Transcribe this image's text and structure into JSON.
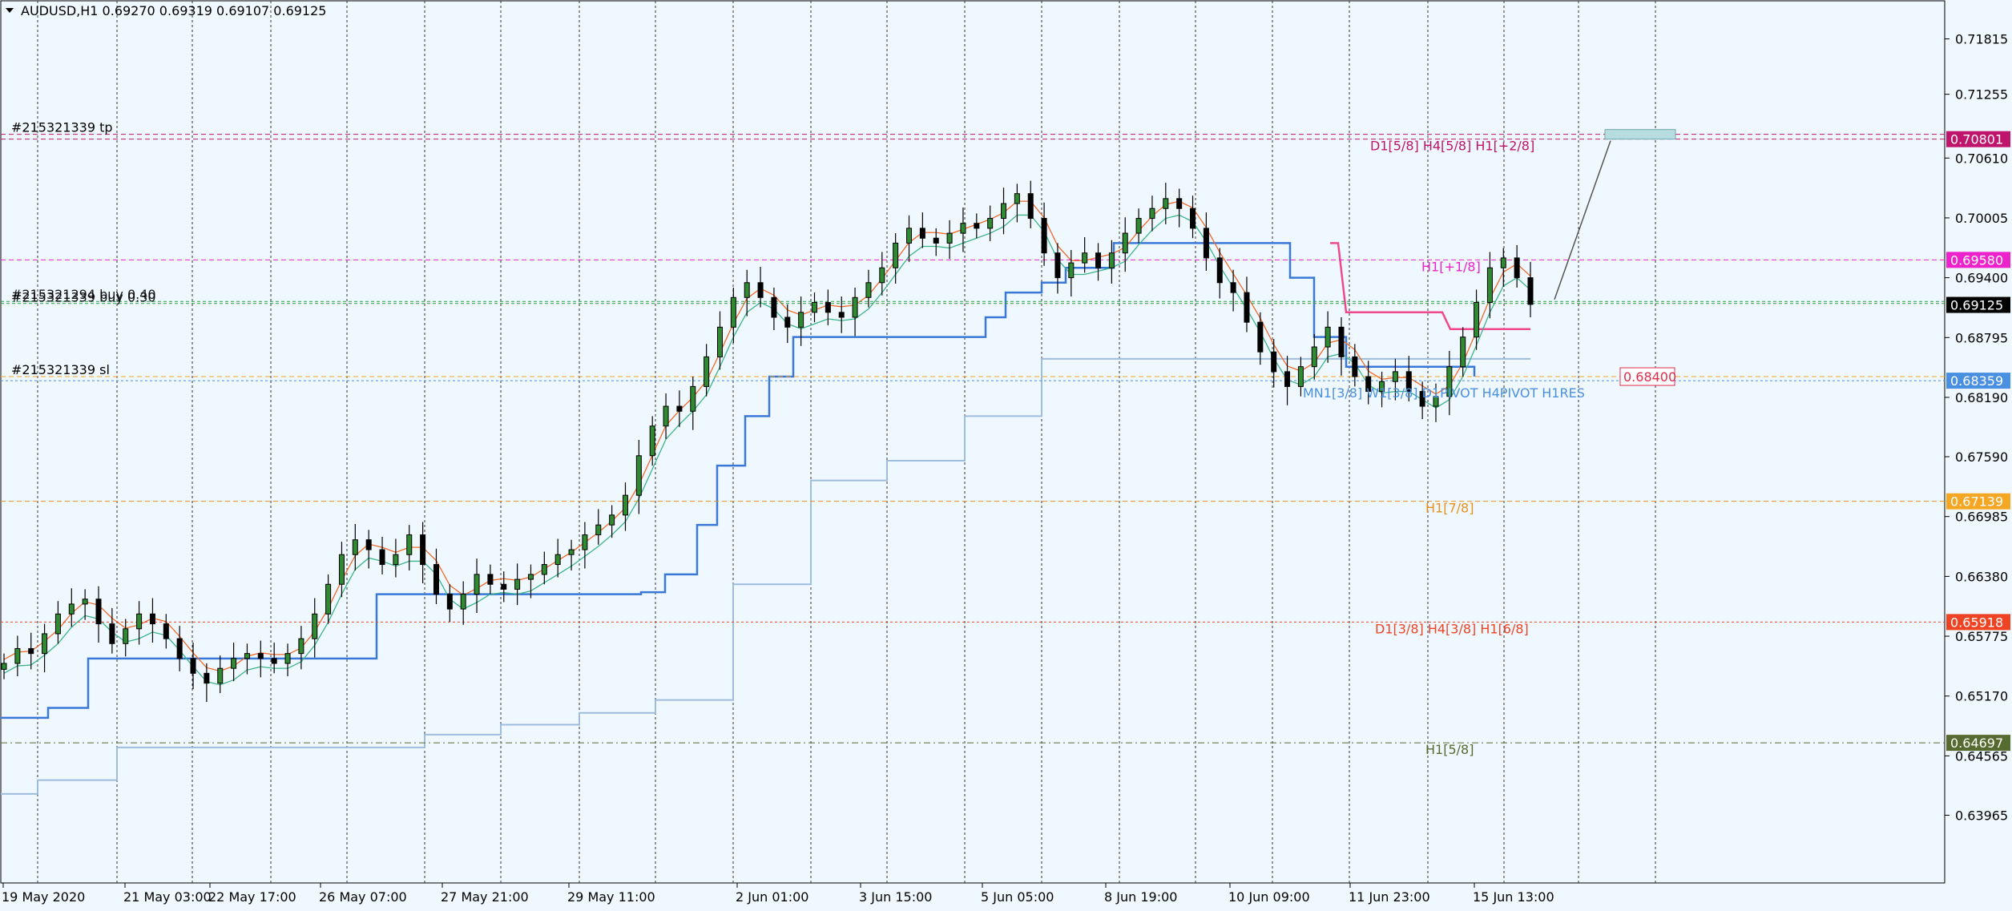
{
  "window": {
    "symbol_title": "AUDUSD,H1  0.69270 0.69319 0.69107 0.69125"
  },
  "chart_data": {
    "type": "candlestick",
    "symbol": "AUDUSD",
    "timeframe": "H1",
    "ohlc_last": {
      "open": 0.6927,
      "high": 0.69319,
      "low": 0.69107,
      "close": 0.69125
    },
    "ylim": [
      0.6328,
      0.722
    ],
    "y_ticks": [
      "0.71815",
      "0.71255",
      "0.70610",
      "0.70005",
      "0.69400",
      "0.68795",
      "0.68190",
      "0.67590",
      "0.66985",
      "0.66380",
      "0.65775",
      "0.65170",
      "0.64565",
      "0.63965"
    ],
    "x_tick_labels": [
      "19 May 2020",
      "21 May 03:00",
      "22 May 17:00",
      "26 May 07:00",
      "27 May 21:00",
      "29 May 11:00",
      "2 Jun 01:00",
      "3 Jun 15:00",
      "5 Jun 05:00",
      "8 Jun 19:00",
      "10 Jun 09:00",
      "11 Jun 23:00",
      "15 Jun 13:00"
    ],
    "price_axis_labels": [
      {
        "value": 0.70801,
        "text": "0.70801",
        "color": "#c0136b"
      },
      {
        "value": 0.6958,
        "text": "0.69580",
        "color": "#ee22cc"
      },
      {
        "value": 0.69125,
        "text": "0.69125",
        "color": "#000000"
      },
      {
        "value": 0.68359,
        "text": "0.68359",
        "color": "#4a90e2"
      },
      {
        "value": 0.67139,
        "text": "0.67139",
        "color": "#f5a623"
      },
      {
        "value": 0.65918,
        "text": "0.65918",
        "color": "#ef4323"
      },
      {
        "value": 0.64697,
        "text": "0.64697",
        "color": "#556b2f"
      }
    ],
    "levels": [
      {
        "label": "D1[5/8] H4[5/8] H1[+2/8]",
        "value": 0.70801,
        "color": "#c0136b"
      },
      {
        "label": "H1[+1/8]",
        "value": 0.6958,
        "color": "#ee22cc"
      },
      {
        "label": "MN1[3/8] W1[3/8] D1PIVOT H4PIVOT H1RES",
        "value": 0.68359,
        "color": "#4a90e2"
      },
      {
        "label": "H1[7/8]",
        "value": 0.67139,
        "color": "#e8901a"
      },
      {
        "label": "D1[3/8] H4[3/8] H1[6/8]",
        "value": 0.65918,
        "color": "#ef4323"
      },
      {
        "label": "H1[5/8]",
        "value": 0.64697,
        "color": "#556b2f"
      }
    ],
    "orders": [
      {
        "label": "#215321339 tp",
        "value": 0.7085,
        "color": "#c0136b"
      },
      {
        "label": "#215321339 sl",
        "value": 0.684,
        "color": "#f5a623"
      },
      {
        "label": "#215321294 buy 0.40",
        "value": 0.6916,
        "color": "#2ea043"
      },
      {
        "label": "#215321339 buy 0.30",
        "value": 0.6914,
        "color": "#2ea043"
      }
    ],
    "sl_box_label": "0.68400",
    "series_close": [
      0.655,
      0.6565,
      0.656,
      0.658,
      0.66,
      0.661,
      0.6615,
      0.659,
      0.657,
      0.6585,
      0.66,
      0.659,
      0.6575,
      0.6555,
      0.654,
      0.653,
      0.6545,
      0.6555,
      0.656,
      0.6555,
      0.655,
      0.656,
      0.6575,
      0.66,
      0.663,
      0.666,
      0.6675,
      0.6665,
      0.665,
      0.666,
      0.668,
      0.665,
      0.662,
      0.6605,
      0.662,
      0.664,
      0.663,
      0.6625,
      0.6635,
      0.664,
      0.665,
      0.666,
      0.6665,
      0.668,
      0.669,
      0.67,
      0.672,
      0.676,
      0.679,
      0.681,
      0.6805,
      0.683,
      0.686,
      0.689,
      0.692,
      0.6935,
      0.692,
      0.69,
      0.689,
      0.6905,
      0.6915,
      0.6905,
      0.69,
      0.692,
      0.6935,
      0.695,
      0.6975,
      0.699,
      0.698,
      0.6975,
      0.6985,
      0.6995,
      0.699,
      0.7,
      0.7015,
      0.7025,
      0.7,
      0.6965,
      0.694,
      0.6955,
      0.6965,
      0.695,
      0.6965,
      0.6985,
      0.7,
      0.701,
      0.702,
      0.701,
      0.699,
      0.696,
      0.6935,
      0.6925,
      0.6895,
      0.6865,
      0.6845,
      0.683,
      0.685,
      0.687,
      0.689,
      0.686,
      0.684,
      0.6825,
      0.6835,
      0.6845,
      0.6825,
      0.681,
      0.682,
      0.685,
      0.688,
      0.6915,
      0.695,
      0.696,
      0.694,
      0.6913
    ]
  }
}
